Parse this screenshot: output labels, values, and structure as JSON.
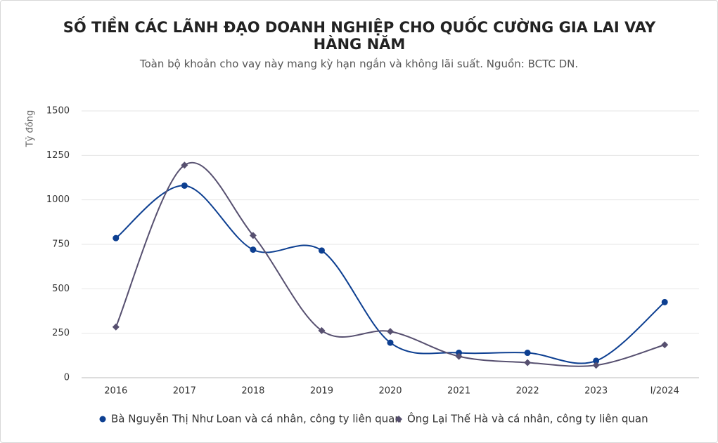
{
  "chart_data": {
    "type": "line",
    "title": "SỐ TIỀN CÁC LÃNH ĐẠO DOANH NGHIỆP CHO QUỐC CƯỜNG GIA LAI VAY HÀNG NĂM",
    "subtitle": "Toàn bộ khoản cho vay này mang kỳ hạn ngắn và không lãi suất. Nguồn: BCTC DN.",
    "y_label": "Tỷ đồng",
    "categories": [
      "2016",
      "2017",
      "2018",
      "2019",
      "2020",
      "2021",
      "2022",
      "2023",
      "I/2024"
    ],
    "series": [
      {
        "name": "Bà Nguyễn Thị Như Loan và cá nhân, công ty liên quan",
        "color": "#0d3f91",
        "marker": "circle",
        "values": [
          785,
          1080,
          720,
          715,
          197,
          140,
          140,
          95,
          425
        ]
      },
      {
        "name": "Ông Lại Thế Hà và cá nhân, công ty liên quan",
        "color": "#575070",
        "marker": "diamond",
        "values": [
          285,
          1195,
          800,
          265,
          260,
          120,
          85,
          70,
          185
        ]
      }
    ],
    "ylim": [
      0,
      1500
    ],
    "yticks": [
      0,
      250,
      500,
      750,
      1000,
      1250,
      1500
    ],
    "grid": true,
    "smooth": true
  }
}
